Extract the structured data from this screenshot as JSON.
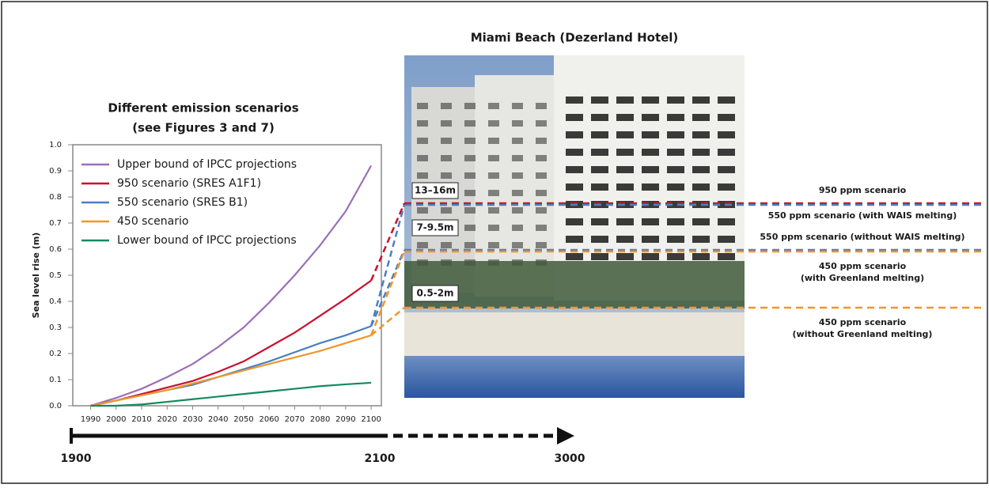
{
  "chart_data": {
    "type": "line",
    "title": "Different emission scenarios",
    "subtitle": "(see Figures 3 and 7)",
    "y_label": "Sea level rise (m)",
    "x": [
      1990,
      2000,
      2010,
      2020,
      2030,
      2040,
      2050,
      2060,
      2070,
      2080,
      2090,
      2100
    ],
    "xlim": [
      1983,
      2104
    ],
    "xticks": [
      1990,
      2000,
      2010,
      2020,
      2030,
      2040,
      2050,
      2060,
      2070,
      2080,
      2090,
      2100
    ],
    "ylim": [
      0,
      1
    ],
    "yticks": [
      {
        "value": 0,
        "label": "0.0"
      },
      0.1,
      0.2,
      0.3,
      0.4,
      0.5,
      0.6,
      0.7,
      0.8,
      0.9,
      {
        "value": 1,
        "label": "1.0"
      }
    ],
    "legend": "upper left",
    "series": [
      {
        "name": "Upper bound of IPCC projections",
        "color": "#9b6fb5",
        "values": [
          0,
          0.03,
          0.065,
          0.11,
          0.16,
          0.225,
          0.3,
          0.395,
          0.5,
          0.615,
          0.745,
          0.92
        ]
      },
      {
        "name": "950 scenario (SRES A1F1)",
        "color": "#c8102e",
        "values": [
          0,
          0.02,
          0.045,
          0.07,
          0.095,
          0.13,
          0.17,
          0.225,
          0.28,
          0.345,
          0.41,
          0.48
        ]
      },
      {
        "name": "550 scenario (SRES B1)",
        "color": "#4a7fc1",
        "values": [
          0,
          0.02,
          0.04,
          0.06,
          0.08,
          0.11,
          0.14,
          0.17,
          0.205,
          0.24,
          0.27,
          0.305
        ]
      },
      {
        "name": "450 scenario",
        "color": "#f0962a",
        "values": [
          0,
          0.02,
          0.04,
          0.06,
          0.085,
          0.11,
          0.135,
          0.16,
          0.185,
          0.21,
          0.24,
          0.27
        ]
      },
      {
        "name": "Lower bound of IPCC projections",
        "color": "#128a5e",
        "values": [
          0,
          0,
          0.005,
          0.015,
          0.025,
          0.035,
          0.045,
          0.055,
          0.065,
          0.075,
          0.082,
          0.088
        ]
      }
    ]
  },
  "photo": {
    "title": "Miami Beach (Dezerland Hotel)",
    "levels": [
      "13–16m",
      "7-9.5m",
      "0.5-2m"
    ],
    "scenarios": [
      "950 ppm scenario",
      "550 ppm scenario (with WAIS melting)",
      "550 ppm scenario (without WAIS melting)",
      "450 ppm scenario",
      "(with Greenland melting)",
      "450 ppm scenario",
      "(without Greenland melting)"
    ]
  },
  "timeline": {
    "labels": [
      "1900",
      "2100",
      "3000"
    ]
  }
}
